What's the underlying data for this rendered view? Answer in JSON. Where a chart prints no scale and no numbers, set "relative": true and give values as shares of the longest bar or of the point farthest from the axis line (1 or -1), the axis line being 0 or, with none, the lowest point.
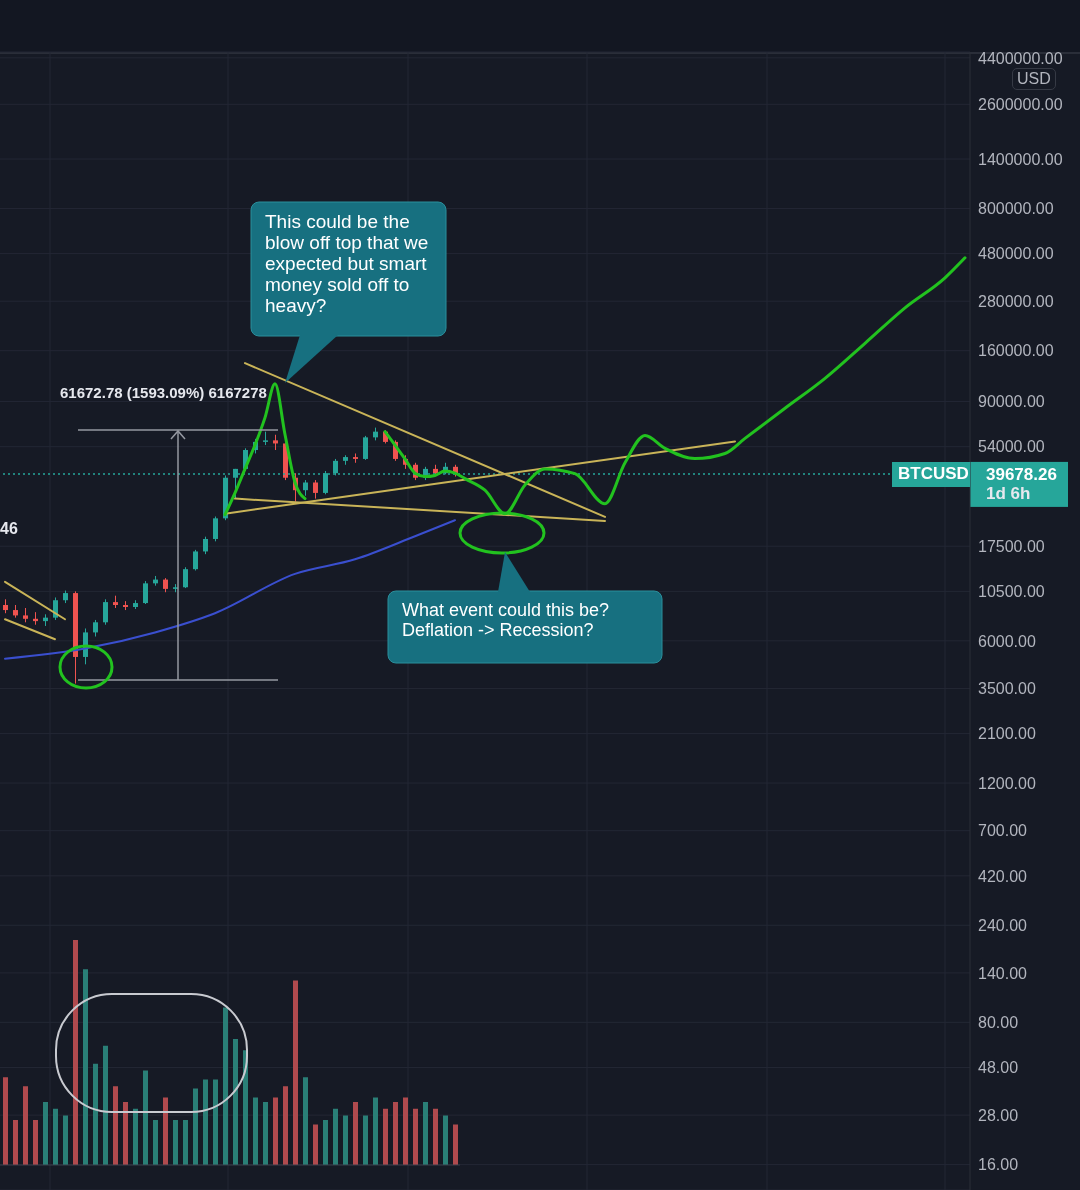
{
  "chart_data": [
    {
      "type": "candlestick",
      "categories": [
        null,
        null,
        null,
        null,
        null,
        null,
        null,
        null,
        null,
        null,
        null,
        null,
        null,
        null,
        null,
        null,
        null,
        null,
        null,
        null,
        null,
        null,
        null,
        null,
        null,
        null,
        null,
        null,
        null,
        null,
        null,
        null,
        null,
        null,
        null,
        null,
        null,
        null,
        null,
        null,
        null,
        null,
        null,
        null,
        null,
        null,
        null,
        null,
        null,
        null,
        null,
        null,
        null,
        null,
        null,
        null,
        null,
        null,
        null,
        null,
        null,
        null,
        null,
        null,
        null,
        null,
        null,
        null,
        null,
        null,
        null,
        null,
        null,
        null,
        null,
        null,
        null,
        null,
        null,
        null,
        null,
        null,
        null,
        null,
        null,
        null,
        null,
        null,
        null,
        null,
        null,
        null,
        null,
        null,
        null,
        null,
        null
      ],
      "ohlc": [
        [
          9000,
          9600,
          8200,
          8500
        ],
        [
          8500,
          9000,
          7800,
          8000
        ],
        [
          8000,
          8700,
          7400,
          7700
        ],
        [
          7700,
          8300,
          7200,
          7500
        ],
        [
          7500,
          8100,
          7100,
          7800
        ],
        [
          7800,
          9800,
          7600,
          9500
        ],
        [
          9500,
          10600,
          9200,
          10300
        ],
        [
          10300,
          10500,
          3700,
          5000
        ],
        [
          5000,
          6900,
          4600,
          6600
        ],
        [
          6600,
          7600,
          6300,
          7400
        ],
        [
          7400,
          9600,
          7200,
          9300
        ],
        [
          9300,
          10000,
          8700,
          9000
        ],
        [
          9000,
          9400,
          8500,
          8800
        ],
        [
          8800,
          9500,
          8600,
          9200
        ],
        [
          9200,
          11800,
          9100,
          11500
        ],
        [
          11500,
          12500,
          11200,
          12000
        ],
        [
          12000,
          12200,
          10400,
          10800
        ],
        [
          10800,
          11400,
          10400,
          11000
        ],
        [
          11000,
          13800,
          10900,
          13500
        ],
        [
          13500,
          16800,
          13300,
          16500
        ],
        [
          16500,
          19500,
          16000,
          19000
        ],
        [
          19000,
          24500,
          18500,
          24000
        ],
        [
          24000,
          39000,
          23500,
          38000
        ],
        [
          38000,
          42000,
          30000,
          42000
        ],
        [
          42000,
          53000,
          41000,
          52000
        ],
        [
          52000,
          59000,
          50000,
          57000
        ],
        [
          57000,
          64000,
          55000,
          58000
        ],
        [
          58000,
          61800,
          52000,
          56000
        ],
        [
          56000,
          58000,
          37000,
          38000
        ],
        [
          38000,
          40000,
          29000,
          33000
        ],
        [
          33000,
          37000,
          31000,
          36000
        ],
        [
          36000,
          37000,
          30000,
          32000
        ],
        [
          32000,
          41000,
          31500,
          40000
        ],
        [
          40000,
          47000,
          39000,
          46000
        ],
        [
          46000,
          49000,
          44000,
          48000
        ],
        [
          48000,
          50000,
          45000,
          47000
        ],
        [
          47000,
          61000,
          46500,
          60000
        ],
        [
          60000,
          67000,
          58000,
          64000
        ],
        [
          64000,
          65000,
          56000,
          57000
        ],
        [
          57000,
          58000,
          46000,
          47000
        ],
        [
          47000,
          49000,
          42000,
          44000
        ],
        [
          44000,
          45000,
          37000,
          38000
        ],
        [
          38000,
          43000,
          37000,
          42000
        ],
        [
          42000,
          44000,
          39000,
          40000
        ],
        [
          40000,
          45000,
          39500,
          43000
        ],
        [
          43000,
          44000,
          38500,
          39678.26
        ],
        null,
        null,
        null,
        null,
        null,
        null,
        null,
        null,
        null,
        null,
        null,
        null,
        null,
        null,
        null,
        null,
        null,
        null,
        null,
        null,
        null,
        null,
        null,
        null,
        null,
        null,
        null,
        null,
        null,
        null,
        null,
        null,
        null,
        null,
        null,
        null,
        null,
        null,
        null,
        null,
        null,
        null,
        null,
        null,
        null,
        null,
        null,
        null,
        null,
        null,
        null
      ],
      "colors": [
        "#ef5350",
        "#ef5350",
        "#ef5350",
        "#ef5350",
        "#26a69a",
        "#26a69a",
        "#26a69a",
        "#ef5350",
        "#26a69a",
        "#26a69a",
        "#26a69a",
        "#ef5350",
        "#ef5350",
        "#26a69a",
        "#26a69a",
        "#26a69a",
        "#ef5350",
        "#26a69a",
        "#26a69a",
        "#26a69a",
        "#26a69a",
        "#26a69a",
        "#26a69a",
        "#26a69a",
        "#26a69a",
        "#26a69a",
        "#26a69a",
        "#ef5350",
        "#ef5350",
        "#ef5350",
        "#26a69a",
        "#ef5350",
        "#26a69a",
        "#26a69a",
        "#26a69a",
        "#ef5350",
        "#26a69a",
        "#26a69a",
        "#ef5350",
        "#ef5350",
        "#ef5350",
        "#ef5350",
        "#26a69a",
        "#ef5350",
        "#26a69a",
        "#ef5350",
        null,
        null,
        null,
        null,
        null,
        null,
        null,
        null,
        null,
        null,
        null,
        null,
        null,
        null,
        null,
        null,
        null,
        null,
        null,
        null,
        null,
        null,
        null,
        null,
        null,
        null,
        null,
        null,
        null,
        null,
        null,
        null,
        null,
        null,
        null,
        null,
        null,
        null,
        null,
        null,
        null,
        null,
        null,
        null,
        null,
        null,
        null,
        null,
        null,
        null,
        null
      ],
      "series": [
        {
          "type": "line",
          "color": "#3a4fcf",
          "values": [
            4900,
            null,
            null,
            null,
            null,
            null,
            null,
            null,
            5500,
            null,
            null,
            null,
            null,
            null,
            null,
            6600,
            null,
            null,
            null,
            null,
            null,
            8200,
            null,
            null,
            null,
            null,
            null,
            null,
            null,
            12800,
            null,
            null,
            null,
            null,
            null,
            15100,
            null,
            null,
            null,
            null,
            null,
            19600,
            null,
            null,
            null,
            23500,
            null,
            null,
            null,
            null,
            null,
            null,
            null,
            null,
            null,
            null,
            null,
            null,
            null,
            null,
            null,
            null,
            null,
            null,
            null,
            null,
            null,
            null,
            null,
            null,
            null,
            null,
            null,
            null,
            null,
            null,
            null,
            null,
            null,
            null,
            null,
            null,
            null,
            null,
            null,
            null,
            null,
            null,
            null,
            null,
            null,
            null,
            null,
            null,
            null,
            null,
            null
          ]
        },
        {
          "type": "line",
          "color": "#c9b458",
          "values": [
            null,
            null,
            null,
            null,
            null,
            null,
            null,
            null,
            null,
            null,
            null,
            null,
            null,
            null,
            null,
            null,
            null,
            null,
            null,
            null,
            null,
            null,
            null,
            null,
            139000,
            null,
            null,
            null,
            null,
            null,
            null,
            null,
            null,
            null,
            null,
            null,
            null,
            null,
            null,
            null,
            null,
            null,
            null,
            null,
            null,
            null,
            null,
            null,
            null,
            null,
            null,
            null,
            null,
            null,
            null,
            null,
            null,
            null,
            null,
            null,
            24400,
            null,
            null,
            null,
            null,
            null,
            null,
            null,
            null,
            null,
            null,
            null,
            null,
            null,
            null,
            null,
            null,
            null,
            null,
            null,
            null,
            null,
            null,
            null,
            null,
            null,
            null,
            null,
            null,
            null,
            null,
            null,
            null,
            null,
            null,
            null,
            null
          ]
        },
        {
          "type": "line",
          "color": "#c9b458",
          "values": [
            null,
            null,
            null,
            null,
            null,
            null,
            null,
            null,
            null,
            null,
            null,
            null,
            null,
            null,
            null,
            null,
            null,
            null,
            null,
            null,
            null,
            null,
            25300,
            null,
            null,
            null,
            null,
            null,
            null,
            null,
            null,
            null,
            null,
            null,
            null,
            null,
            null,
            null,
            null,
            null,
            null,
            null,
            null,
            null,
            null,
            null,
            null,
            null,
            null,
            null,
            null,
            null,
            null,
            null,
            null,
            null,
            null,
            null,
            null,
            null,
            null,
            null,
            null,
            null,
            null,
            null,
            null,
            null,
            null,
            null,
            null,
            null,
            null,
            57300,
            null,
            null,
            null,
            null,
            null,
            null,
            null,
            null,
            null,
            null,
            null,
            null,
            null,
            null,
            null,
            null,
            null,
            null,
            null,
            null,
            null,
            null,
            null
          ]
        },
        {
          "type": "line",
          "color": "#c9b458",
          "values": [
            null,
            null,
            null,
            null,
            null,
            null,
            null,
            null,
            null,
            null,
            null,
            null,
            null,
            null,
            null,
            null,
            null,
            null,
            null,
            null,
            null,
            null,
            null,
            30000,
            null,
            null,
            null,
            null,
            null,
            null,
            null,
            null,
            null,
            null,
            null,
            null,
            null,
            null,
            null,
            null,
            null,
            null,
            null,
            null,
            null,
            null,
            null,
            null,
            null,
            null,
            null,
            null,
            null,
            null,
            null,
            null,
            null,
            null,
            null,
            null,
            23300,
            null,
            null,
            null,
            null,
            null,
            null,
            null,
            null,
            null,
            null,
            null,
            null,
            null,
            null,
            null,
            null,
            null,
            null,
            null,
            null,
            null,
            null,
            null,
            null,
            null,
            null,
            null,
            null,
            null,
            null,
            null,
            null,
            null,
            null,
            null,
            null
          ]
        },
        {
          "type": "line",
          "color": "#c9b458",
          "values": [
            11700,
            null,
            null,
            null,
            null,
            null,
            7660,
            null,
            null,
            null,
            null,
            null,
            null,
            null,
            null,
            null,
            null,
            null,
            null,
            null,
            null,
            null,
            null,
            null,
            null,
            null,
            null,
            null,
            null,
            null,
            null,
            null,
            null,
            null,
            null,
            null,
            null,
            null,
            null,
            null,
            null,
            null,
            null,
            null,
            null,
            null,
            null,
            null,
            null,
            null,
            null,
            null,
            null,
            null,
            null,
            null,
            null,
            null,
            null,
            null,
            null,
            null,
            null,
            null,
            null,
            null,
            null,
            null,
            null,
            null,
            null,
            null,
            null,
            null,
            null,
            null,
            null,
            null,
            null,
            null,
            null,
            null,
            null,
            null,
            null,
            null,
            null,
            null,
            null,
            null,
            null,
            null,
            null,
            null,
            null,
            null,
            null
          ]
        },
        {
          "type": "line",
          "color": "#c9b458",
          "values": [
            7660,
            null,
            null,
            null,
            null,
            6110,
            null,
            null,
            null,
            null,
            null,
            null,
            null,
            null,
            null,
            null,
            null,
            null,
            null,
            null,
            null,
            null,
            null,
            null,
            null,
            null,
            null,
            null,
            null,
            null,
            null,
            null,
            null,
            null,
            null,
            null,
            null,
            null,
            null,
            null,
            null,
            null,
            null,
            null,
            null,
            null,
            null,
            null,
            null,
            null,
            null,
            null,
            null,
            null,
            null,
            null,
            null,
            null,
            null,
            null,
            null,
            null,
            null,
            null,
            null,
            null,
            null,
            null,
            null,
            null,
            null,
            null,
            null,
            null,
            null,
            null,
            null,
            null,
            null,
            null,
            null,
            null,
            null,
            null,
            null,
            null,
            null,
            null,
            null,
            null,
            null,
            null,
            null,
            null,
            null,
            null,
            null
          ]
        },
        {
          "type": "line",
          "color": "#22c21f",
          "values": [
            null,
            null,
            null,
            null,
            null,
            null,
            null,
            null,
            null,
            null,
            null,
            null,
            null,
            null,
            null,
            null,
            null,
            null,
            null,
            null,
            null,
            null,
            25000,
            32000,
            42000,
            55000,
            75000,
            110000,
            62000,
            36000,
            30000,
            null,
            null,
            null,
            null,
            null,
            null,
            null,
            null,
            null,
            null,
            null,
            null,
            null,
            null,
            null,
            null,
            null,
            null,
            null,
            null,
            null,
            null,
            null,
            null,
            null,
            null,
            null,
            null,
            null,
            null,
            null,
            null,
            null,
            null,
            null,
            null,
            null,
            null,
            null,
            null,
            null,
            null,
            null,
            null,
            null,
            null,
            null,
            null,
            null,
            null,
            null,
            null,
            null,
            null,
            null,
            null,
            null,
            null,
            null,
            null,
            null,
            null,
            null,
            null,
            null,
            null
          ]
        },
        {
          "type": "line",
          "color": "#22c21f",
          "values": [
            null,
            null,
            null,
            null,
            null,
            null,
            null,
            null,
            null,
            null,
            null,
            null,
            null,
            null,
            null,
            null,
            null,
            null,
            null,
            null,
            null,
            null,
            null,
            null,
            null,
            null,
            null,
            null,
            null,
            null,
            null,
            null,
            null,
            null,
            null,
            null,
            null,
            null,
            64000,
            55000,
            47000,
            40000,
            38500,
            39000,
            41000,
            40000,
            37600,
            null,
            33000,
            null,
            25300,
            null,
            35000,
            null,
            42000,
            null,
            null,
            39800,
            null,
            null,
            28300,
            null,
            45000,
            null,
            61300,
            null,
            53000,
            null,
            null,
            47200,
            null,
            null,
            50000,
            null,
            59300,
            null,
            null,
            null,
            83400,
            null,
            null,
            null,
            117000,
            null,
            null,
            null,
            174000,
            null,
            null,
            null,
            260000,
            null,
            null,
            null,
            365000,
            null,
            458000
          ]
        }
      ],
      "log": true,
      "ylim": [
        12,
        4700000
      ],
      "yticks": [
        {
          "value": 16,
          "label": "16.00"
        },
        {
          "value": 28,
          "label": "28.00"
        },
        {
          "value": 48,
          "label": "48.00"
        },
        {
          "value": 80,
          "label": "80.00"
        },
        {
          "value": 140,
          "label": "140.00"
        },
        {
          "value": 240,
          "label": "240.00"
        },
        {
          "value": 420,
          "label": "420.00"
        },
        {
          "value": 700,
          "label": "700.00"
        },
        {
          "value": 1200,
          "label": "1200.00"
        },
        {
          "value": 2100,
          "label": "2100.00"
        },
        {
          "value": 3500,
          "label": "3500.00"
        },
        {
          "value": 6000,
          "label": "6000.00"
        },
        {
          "value": 10500,
          "label": "10500.00"
        },
        {
          "value": 17500,
          "label": "17500.00"
        },
        {
          "value": 54000,
          "label": "54000.00"
        },
        {
          "value": 90000,
          "label": "90000.00"
        },
        {
          "value": 160000,
          "label": "160000.00"
        },
        {
          "value": 280000,
          "label": "280000.00"
        },
        {
          "value": 480000,
          "label": "480000.00"
        },
        {
          "value": 800000,
          "label": "800000.00"
        },
        {
          "value": 1400000,
          "label": "1400000.00"
        },
        {
          "value": 2600000,
          "label": "2600000.00"
        },
        {
          "value": 4400000,
          "label": "4400000.00"
        }
      ],
      "grid": true,
      "tick_labels": "y",
      "marker": "none",
      "line_style": "solid",
      "ref_lines": [
        {
          "axis": "y",
          "value": 39678.26,
          "label": "39678.26",
          "color": "#26a69a",
          "line_style": "dotted"
        }
      ],
      "annotations": [
        "This could be the blow off top that we expected but smart money sold off to heavy?",
        "What event could this be? Deflation -> Recession?",
        "61672.78 (1593.09%) 6167278",
        "46",
        "USD",
        "BTCUSD",
        "1d 6h"
      ]
    },
    {
      "type": "bar",
      "relative": true,
      "categories": [
        null,
        null,
        null,
        null,
        null,
        null,
        null,
        null,
        null,
        null,
        null,
        null,
        null,
        null,
        null,
        null,
        null,
        null,
        null,
        null,
        null,
        null,
        null,
        null,
        null,
        null,
        null,
        null,
        null,
        null,
        null,
        null,
        null,
        null,
        null,
        null,
        null,
        null,
        null,
        null,
        null,
        null,
        null,
        null,
        null,
        null
      ],
      "values": [
        0.39,
        0.2,
        0.35,
        0.2,
        0.28,
        0.25,
        0.22,
        1,
        0.87,
        0.45,
        0.53,
        0.35,
        0.28,
        0.25,
        0.42,
        0.2,
        0.3,
        0.2,
        0.2,
        0.34,
        0.38,
        0.38,
        0.7,
        0.56,
        0.51,
        0.3,
        0.28,
        0.3,
        0.35,
        0.82,
        0.39,
        0.18,
        0.2,
        0.25,
        0.22,
        0.28,
        0.22,
        0.3,
        0.25,
        0.28,
        0.3,
        0.25,
        0.28,
        0.25,
        0.22,
        0.18
      ],
      "colors": [
        "#b04a4e",
        "#b04a4e",
        "#b04a4e",
        "#b04a4e",
        "#2a7f77",
        "#2a7f77",
        "#2a7f77",
        "#b04a4e",
        "#2a7f77",
        "#2a7f77",
        "#2a7f77",
        "#b04a4e",
        "#b04a4e",
        "#2a7f77",
        "#2a7f77",
        "#2a7f77",
        "#b04a4e",
        "#2a7f77",
        "#2a7f77",
        "#2a7f77",
        "#2a7f77",
        "#2a7f77",
        "#2a7f77",
        "#2a7f77",
        "#2a7f77",
        "#2a7f77",
        "#2a7f77",
        "#b04a4e",
        "#b04a4e",
        "#b04a4e",
        "#2a7f77",
        "#b04a4e",
        "#2a7f77",
        "#2a7f77",
        "#2a7f77",
        "#b04a4e",
        "#2a7f77",
        "#2a7f77",
        "#b04a4e",
        "#b04a4e",
        "#b04a4e",
        "#b04a4e",
        "#2a7f77",
        "#b04a4e",
        "#2a7f77",
        "#b04a4e"
      ]
    }
  ]
}
